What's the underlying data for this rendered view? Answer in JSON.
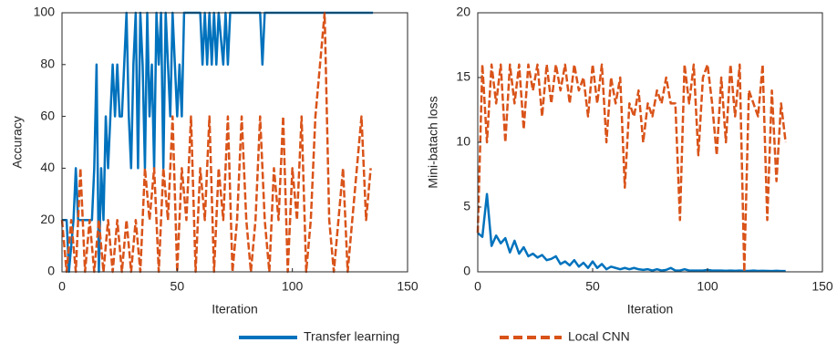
{
  "chart_data": [
    {
      "type": "line",
      "x_label": "Iteration",
      "y_label": "Accuracy",
      "xlim": [
        0,
        150
      ],
      "xticks": [
        0,
        50,
        100,
        150
      ],
      "ylim": [
        0,
        100
      ],
      "yticks": [
        0,
        20,
        40,
        60,
        80,
        100
      ],
      "series": [
        {
          "name": "Transfer learning",
          "color": "#0072bd",
          "dashed": false,
          "x": [
            0,
            2,
            3,
            5,
            6,
            7,
            9,
            11,
            13,
            14,
            15,
            16,
            17,
            18,
            19,
            20,
            21,
            22,
            23,
            24,
            25,
            26,
            27,
            28,
            29,
            30,
            31,
            32,
            33,
            34,
            35,
            36,
            37,
            38,
            39,
            40,
            41,
            42,
            43,
            44,
            45,
            46,
            47,
            48,
            49,
            50,
            51,
            52,
            53,
            55,
            60,
            61,
            62,
            63,
            64,
            65,
            66,
            67,
            68,
            70,
            71,
            72,
            73,
            75,
            86,
            87,
            88,
            135
          ],
          "values": [
            20,
            20,
            0,
            20,
            40,
            20,
            20,
            20,
            20,
            40,
            80,
            0,
            40,
            20,
            60,
            40,
            60,
            80,
            60,
            80,
            60,
            60,
            80,
            100,
            60,
            40,
            80,
            100,
            40,
            100,
            80,
            40,
            100,
            60,
            80,
            40,
            100,
            80,
            100,
            40,
            100,
            80,
            60,
            100,
            80,
            60,
            80,
            60,
            100,
            100,
            100,
            80,
            100,
            80,
            100,
            80,
            100,
            80,
            100,
            80,
            100,
            80,
            100,
            100,
            100,
            80,
            100,
            100
          ]
        },
        {
          "name": "Local CNN",
          "color": "#d95319",
          "dashed": true,
          "x": [
            0,
            2,
            4,
            6,
            8,
            10,
            12,
            14,
            16,
            18,
            20,
            22,
            24,
            26,
            28,
            30,
            32,
            34,
            36,
            38,
            40,
            42,
            44,
            46,
            48,
            50,
            52,
            54,
            56,
            58,
            60,
            62,
            64,
            66,
            68,
            70,
            72,
            74,
            76,
            78,
            80,
            82,
            84,
            86,
            88,
            90,
            92,
            94,
            96,
            98,
            100,
            102,
            104,
            106,
            108,
            110,
            112,
            114,
            116,
            118,
            120,
            122,
            124,
            126,
            128,
            130,
            132,
            134
          ],
          "values": [
            20,
            0,
            20,
            0,
            40,
            0,
            20,
            0,
            20,
            0,
            20,
            0,
            20,
            0,
            20,
            0,
            20,
            0,
            40,
            20,
            40,
            0,
            40,
            20,
            60,
            0,
            40,
            20,
            60,
            0,
            40,
            20,
            60,
            0,
            40,
            20,
            60,
            0,
            20,
            60,
            20,
            0,
            20,
            60,
            20,
            0,
            40,
            20,
            60,
            0,
            40,
            20,
            60,
            0,
            20,
            60,
            80,
            100,
            20,
            0,
            20,
            40,
            0,
            20,
            40,
            60,
            20,
            40
          ]
        }
      ]
    },
    {
      "type": "line",
      "x_label": "Iteration",
      "y_label": "Mini-batach loss",
      "xlim": [
        0,
        150
      ],
      "xticks": [
        0,
        50,
        100,
        150
      ],
      "ylim": [
        0,
        20
      ],
      "yticks": [
        0,
        5,
        10,
        15,
        20
      ],
      "series": [
        {
          "name": "Transfer learning",
          "color": "#0072bd",
          "dashed": false,
          "x": [
            0,
            2,
            4,
            6,
            8,
            10,
            12,
            14,
            16,
            18,
            20,
            22,
            24,
            26,
            28,
            30,
            32,
            34,
            36,
            38,
            40,
            42,
            44,
            46,
            48,
            50,
            52,
            54,
            56,
            58,
            60,
            62,
            64,
            66,
            68,
            70,
            72,
            74,
            76,
            78,
            80,
            82,
            84,
            86,
            88,
            90,
            92,
            94,
            96,
            98,
            100,
            102,
            104,
            106,
            108,
            110,
            112,
            114,
            116,
            118,
            120,
            122,
            124,
            126,
            128,
            130,
            132,
            134
          ],
          "values": [
            3,
            2.7,
            6,
            2,
            2.8,
            2.2,
            2.6,
            1.5,
            2.4,
            1.4,
            1.9,
            1.2,
            1.4,
            1.1,
            1.3,
            0.9,
            1,
            1.2,
            0.6,
            0.8,
            0.5,
            0.9,
            0.4,
            0.7,
            0.3,
            0.8,
            0.3,
            0.6,
            0.2,
            0.4,
            0.3,
            0.2,
            0.3,
            0.2,
            0.3,
            0.2,
            0.15,
            0.2,
            0.1,
            0.2,
            0.1,
            0.15,
            0.3,
            0.1,
            0.1,
            0.2,
            0.1,
            0.1,
            0.1,
            0.1,
            0.15,
            0.1,
            0.1,
            0.1,
            0.08,
            0.1,
            0.08,
            0.1,
            0.08,
            0.07,
            0.1,
            0.07,
            0.08,
            0.07,
            0.06,
            0.08,
            0.06,
            0.06
          ]
        },
        {
          "name": "Local CNN",
          "color": "#d95319",
          "dashed": true,
          "x": [
            0,
            2,
            4,
            6,
            8,
            10,
            12,
            14,
            16,
            18,
            20,
            22,
            24,
            26,
            28,
            30,
            32,
            34,
            36,
            38,
            40,
            42,
            44,
            46,
            48,
            50,
            52,
            54,
            56,
            58,
            60,
            62,
            64,
            66,
            68,
            70,
            72,
            74,
            76,
            78,
            80,
            82,
            84,
            86,
            88,
            90,
            92,
            94,
            96,
            98,
            100,
            102,
            104,
            106,
            108,
            110,
            112,
            114,
            116,
            118,
            120,
            122,
            124,
            126,
            128,
            130,
            132,
            134
          ],
          "values": [
            3,
            16,
            10,
            16,
            13,
            16,
            10,
            16,
            13,
            16,
            11,
            16,
            14,
            16,
            12,
            16,
            13,
            16,
            14,
            16,
            13,
            16,
            14,
            15,
            12,
            16,
            13,
            16,
            10,
            15,
            13,
            15,
            6.5,
            13,
            12,
            14,
            10,
            13,
            12,
            14,
            13,
            15,
            13,
            13,
            4,
            16,
            13,
            16,
            9,
            15,
            16,
            13,
            9,
            15,
            10,
            16,
            12,
            16,
            0,
            14,
            13,
            12,
            16,
            4,
            14,
            7,
            13,
            10
          ]
        }
      ]
    }
  ]
}
